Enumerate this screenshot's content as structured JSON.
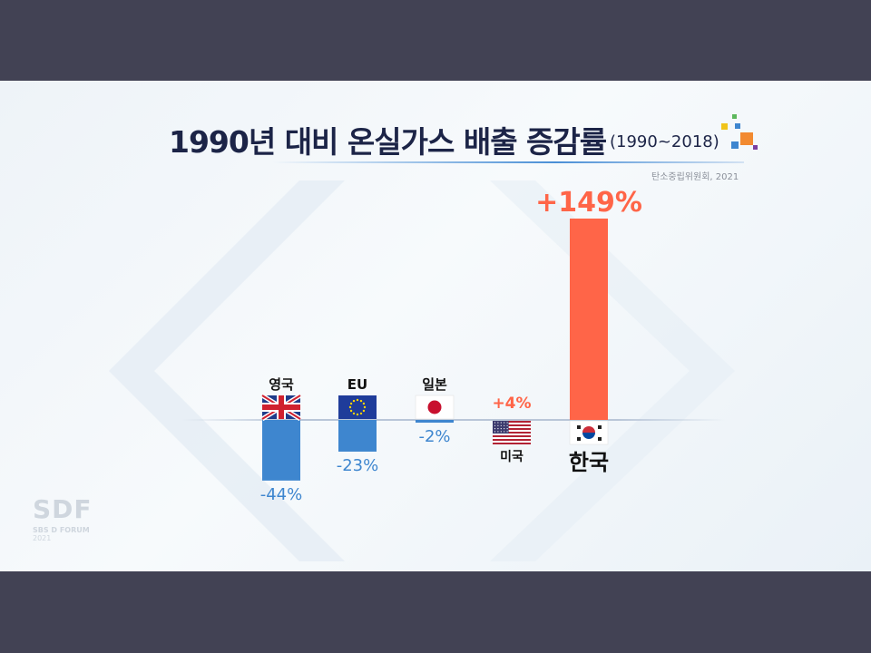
{
  "title": "1990년 대비 온실가스 배출 증감률",
  "title_range": "(1990~2018)",
  "source": "탄소중립위원회, 2021",
  "watermark": {
    "logo": "SDF",
    "name": "SBS D FORUM",
    "year": "2021"
  },
  "colors": {
    "positive": "#ff6548",
    "negative": "#3e86cf",
    "korea_label": "#ff6548",
    "us_label": "#ff6548",
    "negative_label": "#3e86cf"
  },
  "chart_data": {
    "type": "bar",
    "title": "1990년 대비 온실가스 배출 증감률 (1990~2018)",
    "unit": "%",
    "categories": [
      "영국",
      "EU",
      "일본",
      "미국",
      "한국"
    ],
    "values": [
      -44,
      -23,
      -2,
      4,
      149
    ],
    "value_labels": [
      "-44%",
      "-23%",
      "-2%",
      "+4%",
      "+149%"
    ],
    "flags": [
      "uk-flag-icon",
      "eu-flag-icon",
      "japan-flag-icon",
      "us-flag-icon",
      "korea-flag-icon"
    ],
    "ylim": [
      -44,
      149
    ],
    "grid": false,
    "legend": "none"
  }
}
